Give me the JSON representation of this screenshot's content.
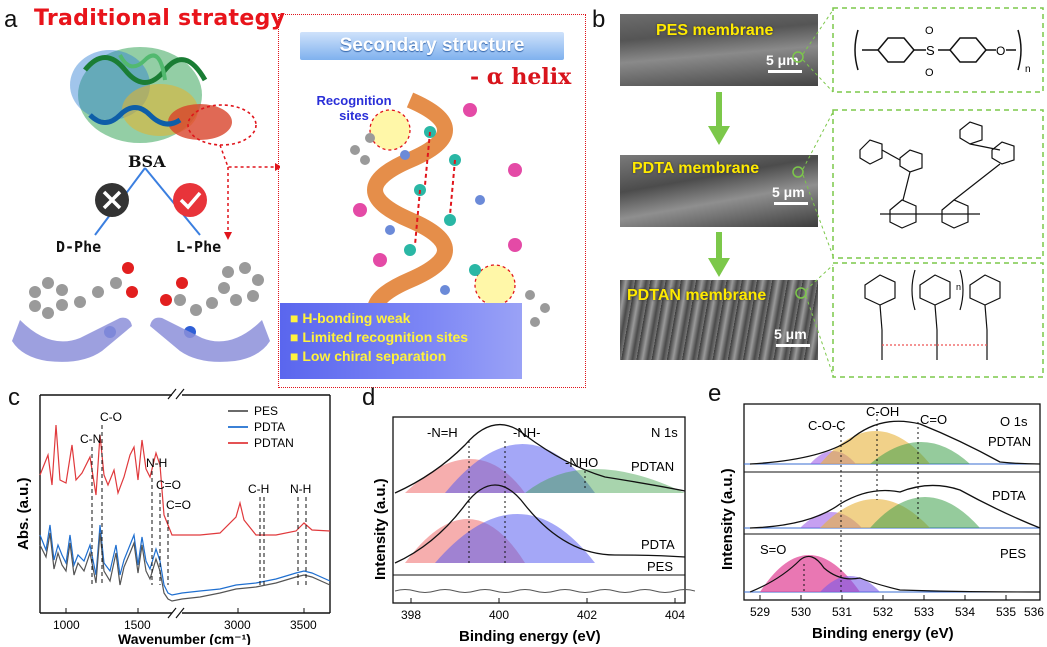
{
  "panel_a": {
    "label": "a",
    "strategy": "Traditional strategy",
    "protein": "BSA",
    "enantiomer_left": "D-Phe",
    "enantiomer_right": "L-Phe",
    "secondary_title": "Secondary structure",
    "secondary_sub": "- α helix",
    "recognition": "Recognition sites",
    "bullets": [
      "H-bonding weak",
      "Limited recognition sites",
      "Low chiral separation"
    ],
    "colors": {
      "red": "#e8141b",
      "blue_hand": "#8c8fd9",
      "helix": "#e07a2a"
    }
  },
  "panel_b": {
    "label": "b",
    "membranes": [
      "PES membrane",
      "PDTA membrane",
      "PDTAN membrane"
    ],
    "scale_bar": "5 μm",
    "pes_repeat": "n",
    "pdtan_repeat": "n"
  },
  "panel_c": {
    "label": "c",
    "chart_data": {
      "type": "line",
      "xlabel": "Wavenumber (cm⁻¹)",
      "ylabel": "Abs. (a.u.)",
      "xticks": [
        "1000",
        "1500",
        "3000",
        "3500"
      ],
      "legend": [
        "PES",
        "PDTA",
        "PDTAN"
      ],
      "annotations": [
        "C-N",
        "C-O",
        "N-H",
        "C=O",
        "C=O",
        "C-H",
        "N-H"
      ],
      "series": [
        {
          "name": "PES",
          "color": "#555555"
        },
        {
          "name": "PDTA",
          "color": "#1f6fd0"
        },
        {
          "name": "PDTAN",
          "color": "#e0393c"
        }
      ],
      "xbreak": true
    }
  },
  "panel_d": {
    "label": "d",
    "chart_data": {
      "type": "line",
      "title": "N 1s",
      "xlabel": "Binding energy (eV)",
      "ylabel": "Intensity (a.u.)",
      "xticks": [
        "398",
        "400",
        "402",
        "404"
      ],
      "xlim": [
        397.4,
        404
      ],
      "peaks": [
        "-N=H",
        "-NH-",
        "-NHO"
      ],
      "peak_positions": [
        399.2,
        400.0,
        401.8
      ],
      "spectra": [
        "PDTAN",
        "PDTA",
        "PES"
      ]
    }
  },
  "panel_e": {
    "label": "e",
    "chart_data": {
      "type": "line",
      "title": "O 1s",
      "xlabel": "Binding energy (eV)",
      "ylabel": "Intensity (a.u.)",
      "xticks": [
        "529",
        "530",
        "531",
        "532",
        "533",
        "534",
        "535",
        "536"
      ],
      "xlim": [
        528.8,
        536
      ],
      "peaks": [
        "C-O-C",
        "C-OH",
        "C=O",
        "S=O"
      ],
      "peak_positions": [
        531.4,
        532.1,
        533.1,
        530.1
      ],
      "spectra": [
        "PDTAN",
        "PDTA",
        "PES"
      ]
    }
  }
}
